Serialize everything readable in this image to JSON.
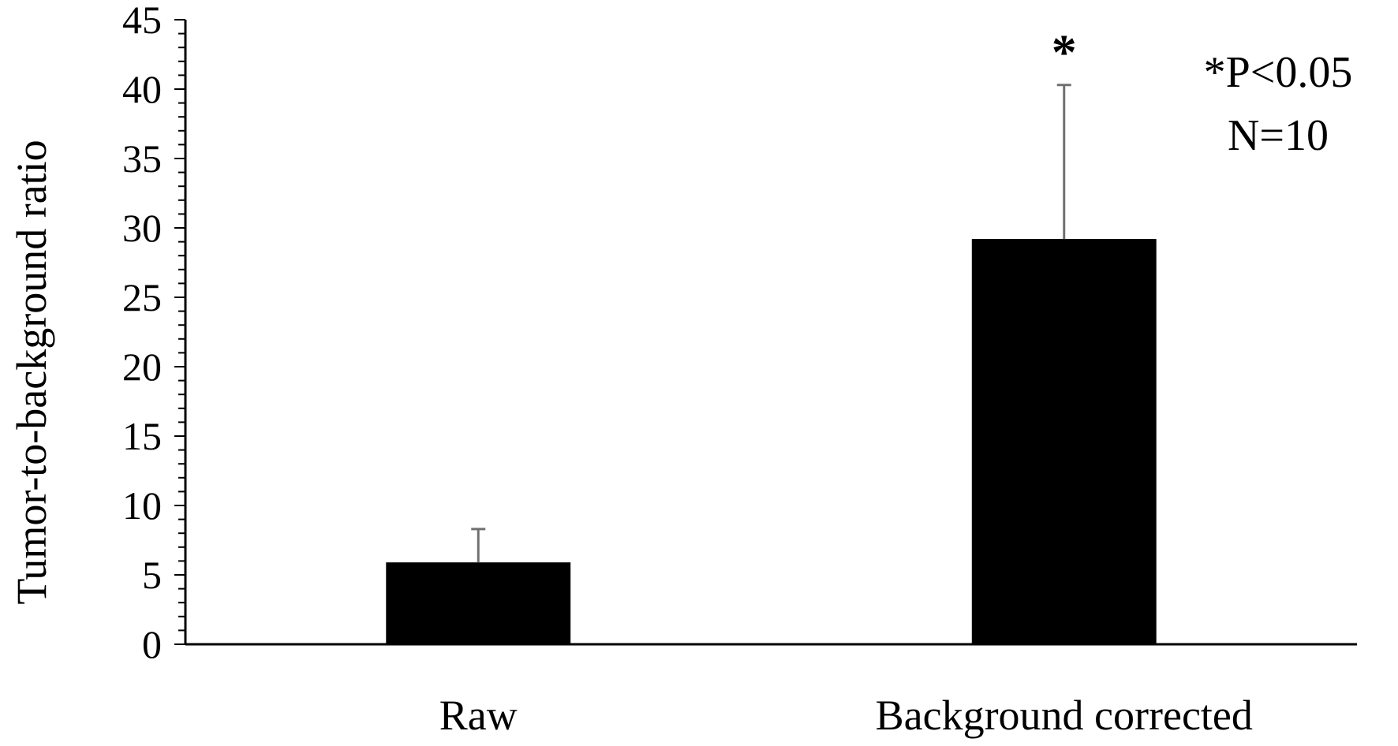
{
  "chart_data": {
    "type": "bar",
    "title": "",
    "xlabel": "",
    "ylabel": "Tumor-to-background ratio",
    "ylim": [
      0,
      45
    ],
    "y_ticks": [
      0,
      5,
      10,
      15,
      20,
      25,
      30,
      35,
      40,
      45
    ],
    "y_minor_step": 1,
    "categories": [
      "Raw",
      "Background corrected"
    ],
    "series": [
      {
        "values": [
          5.9,
          29.2
        ],
        "error_upper": [
          2.4,
          11.1
        ],
        "color": "#000000",
        "error_color": "#707070"
      }
    ],
    "significance_markers": [
      "",
      "*"
    ],
    "annotations": [
      "*P<0.05",
      "N=10"
    ],
    "grid": false,
    "legend": false
  }
}
